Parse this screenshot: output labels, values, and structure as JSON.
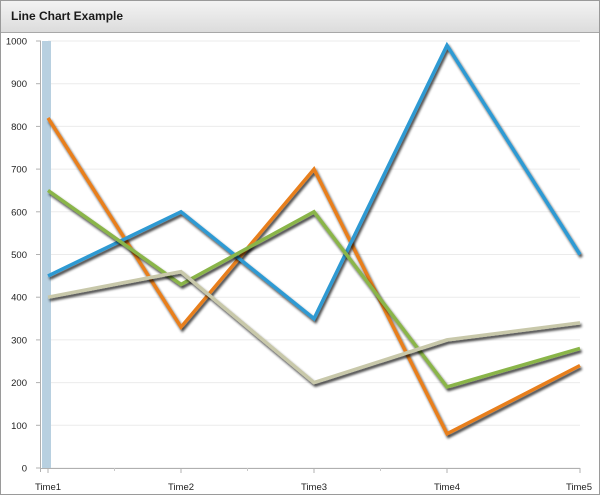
{
  "panel": {
    "title": "Line Chart Example"
  },
  "chart_data": {
    "type": "line",
    "title": "Line Chart Example",
    "xlabel": "",
    "ylabel": "",
    "categories": [
      "Time1",
      "Time2",
      "Time3",
      "Time4",
      "Time5"
    ],
    "ylim": [
      0,
      1000
    ],
    "yticks": [
      0,
      100,
      200,
      300,
      400,
      500,
      600,
      700,
      800,
      900,
      1000
    ],
    "grid": true,
    "legend": "none",
    "axis_band_color": "#b8d0e0",
    "series": [
      {
        "color": "#e87f1e",
        "values": [
          820,
          330,
          700,
          80,
          240
        ]
      },
      {
        "color": "#2f9ad3",
        "values": [
          450,
          600,
          350,
          990,
          500
        ]
      },
      {
        "color": "#8ab54a",
        "values": [
          650,
          430,
          600,
          190,
          280
        ]
      },
      {
        "color": "#c8c8aa",
        "values": [
          400,
          460,
          200,
          300,
          340
        ]
      }
    ]
  }
}
